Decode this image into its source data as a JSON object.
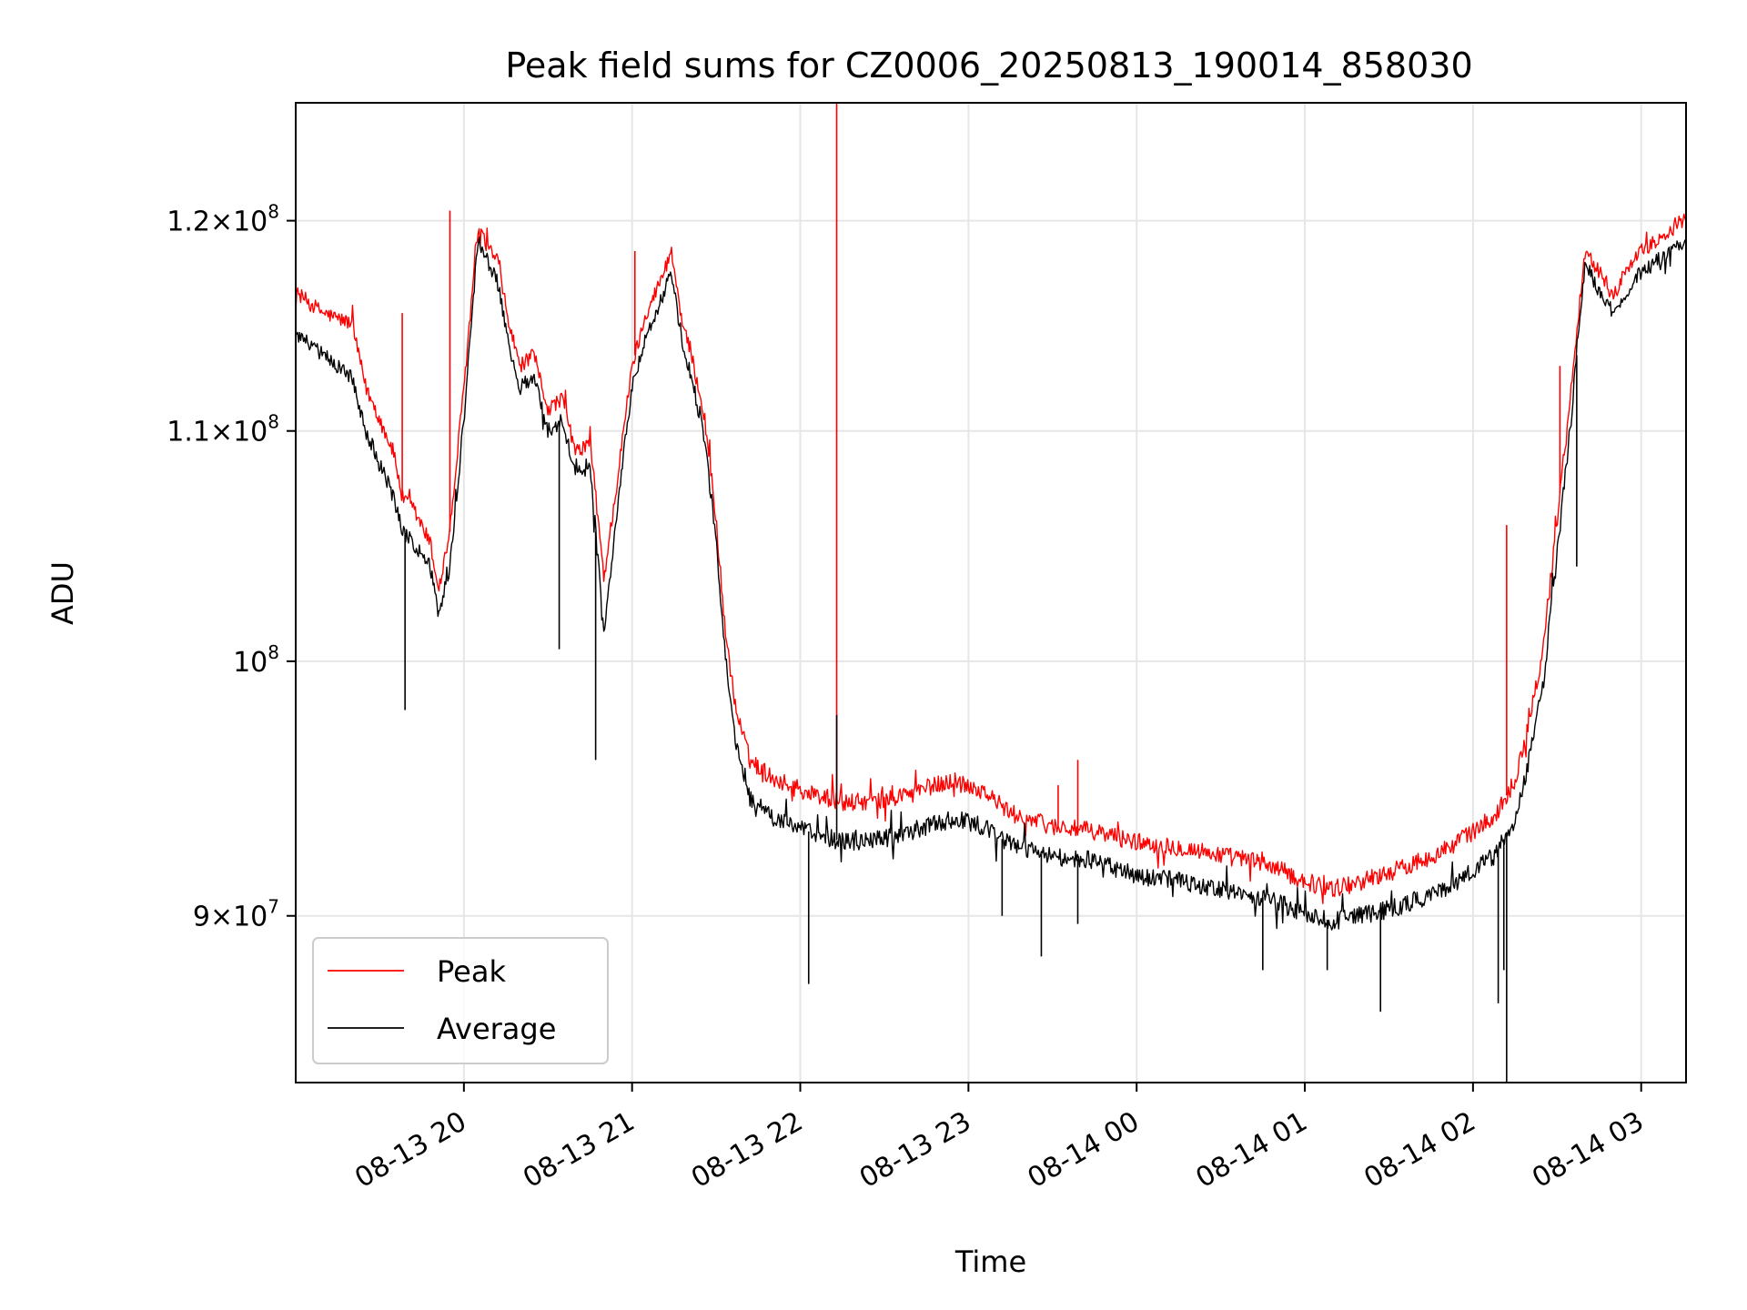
{
  "chart_data": {
    "type": "line",
    "title": "Peak field sums for CZ0006_20250813_190014_858030",
    "xlabel": "Time",
    "ylabel": "ADU",
    "y_scale": "log",
    "xlim": [
      "2025-08-13 19:00",
      "2025-08-14 03:16"
    ],
    "ylim": [
      84000000,
      126000000
    ],
    "grid": true,
    "legend_position": "lower-left",
    "x_ticks": [
      {
        "value": "2025-08-13 20:00",
        "label": "08-13 20"
      },
      {
        "value": "2025-08-13 21:00",
        "label": "08-13 21"
      },
      {
        "value": "2025-08-13 22:00",
        "label": "08-13 22"
      },
      {
        "value": "2025-08-13 23:00",
        "label": "08-13 23"
      },
      {
        "value": "2025-08-14 00:00",
        "label": "08-14 00"
      },
      {
        "value": "2025-08-14 01:00",
        "label": "08-14 01"
      },
      {
        "value": "2025-08-14 02:00",
        "label": "08-14 02"
      },
      {
        "value": "2025-08-14 03:00",
        "label": "08-14 03"
      }
    ],
    "y_ticks": [
      {
        "value": 90000000,
        "mantissa": "9",
        "times": "×",
        "base": "10",
        "exp": "7"
      },
      {
        "value": 100000000,
        "mantissa": "",
        "times": "",
        "base": "10",
        "exp": "8"
      },
      {
        "value": 110000000,
        "mantissa": "1.1",
        "times": "×",
        "base": "10",
        "exp": "8"
      },
      {
        "value": 120000000,
        "mantissa": "1.2",
        "times": "×",
        "base": "10",
        "exp": "8"
      }
    ],
    "series": [
      {
        "name": "Peak",
        "color": "#ff0000",
        "noise": 350000,
        "points": [
          [
            "2025-08-13 19:00",
            116500000
          ],
          [
            "2025-08-13 19:10",
            115500000
          ],
          [
            "2025-08-13 19:20",
            115000000
          ],
          [
            "2025-08-13 19:25",
            112000000
          ],
          [
            "2025-08-13 19:35",
            109000000
          ],
          [
            "2025-08-13 19:38",
            107000000
          ],
          [
            "2025-08-13 19:42",
            106500000
          ],
          [
            "2025-08-13 19:48",
            105000000
          ],
          [
            "2025-08-13 19:51",
            103000000
          ],
          [
            "2025-08-13 19:55",
            105500000
          ],
          [
            "2025-08-13 20:00",
            112000000
          ],
          [
            "2025-08-13 20:05",
            119500000
          ],
          [
            "2025-08-13 20:12",
            118000000
          ],
          [
            "2025-08-13 20:16",
            115000000
          ],
          [
            "2025-08-13 20:20",
            113000000
          ],
          [
            "2025-08-13 20:25",
            113500000
          ],
          [
            "2025-08-13 20:30",
            111000000
          ],
          [
            "2025-08-13 20:35",
            111500000
          ],
          [
            "2025-08-13 20:40",
            109000000
          ],
          [
            "2025-08-13 20:45",
            109500000
          ],
          [
            "2025-08-13 20:50",
            103500000
          ],
          [
            "2025-08-13 20:55",
            108000000
          ],
          [
            "2025-08-13 21:00",
            113000000
          ],
          [
            "2025-08-13 21:05",
            115500000
          ],
          [
            "2025-08-13 21:10",
            117000000
          ],
          [
            "2025-08-13 21:14",
            118500000
          ],
          [
            "2025-08-13 21:18",
            115000000
          ],
          [
            "2025-08-13 21:22",
            113000000
          ],
          [
            "2025-08-13 21:26",
            110500000
          ],
          [
            "2025-08-13 21:30",
            106000000
          ],
          [
            "2025-08-13 21:33",
            101500000
          ],
          [
            "2025-08-13 21:37",
            98000000
          ],
          [
            "2025-08-13 21:42",
            96000000
          ],
          [
            "2025-08-13 21:50",
            95300000
          ],
          [
            "2025-08-13 22:00",
            94800000
          ],
          [
            "2025-08-13 22:15",
            94300000
          ],
          [
            "2025-08-13 22:30",
            94400000
          ],
          [
            "2025-08-13 22:45",
            94900000
          ],
          [
            "2025-08-13 22:55",
            95200000
          ],
          [
            "2025-08-13 23:05",
            94800000
          ],
          [
            "2025-08-13 23:15",
            93900000
          ],
          [
            "2025-08-13 23:30",
            93400000
          ],
          [
            "2025-08-13 23:45",
            93200000
          ],
          [
            "2025-08-14 00:00",
            92800000
          ],
          [
            "2025-08-14 00:15",
            92600000
          ],
          [
            "2025-08-14 00:30",
            92300000
          ],
          [
            "2025-08-14 00:45",
            92000000
          ],
          [
            "2025-08-14 01:00",
            91300000
          ],
          [
            "2025-08-14 01:10",
            91000000
          ],
          [
            "2025-08-14 01:20",
            91300000
          ],
          [
            "2025-08-14 01:35",
            91800000
          ],
          [
            "2025-08-14 01:50",
            92500000
          ],
          [
            "2025-08-14 02:00",
            93200000
          ],
          [
            "2025-08-14 02:08",
            93800000
          ],
          [
            "2025-08-14 02:15",
            95200000
          ],
          [
            "2025-08-14 02:20",
            97500000
          ],
          [
            "2025-08-14 02:25",
            100500000
          ],
          [
            "2025-08-14 02:30",
            106000000
          ],
          [
            "2025-08-14 02:35",
            112000000
          ],
          [
            "2025-08-14 02:40",
            118500000
          ],
          [
            "2025-08-14 02:45",
            117500000
          ],
          [
            "2025-08-14 02:50",
            116500000
          ],
          [
            "2025-08-14 03:00",
            118500000
          ],
          [
            "2025-08-14 03:16",
            120000000
          ]
        ],
        "spikes": [
          [
            "2025-08-13 19:38",
            115500000
          ],
          [
            "2025-08-13 19:55",
            120500000
          ],
          [
            "2025-08-13 21:01",
            118500000
          ],
          [
            "2025-08-13 22:13",
            126000000
          ],
          [
            "2025-08-13 23:32",
            95000000
          ],
          [
            "2025-08-13 23:39",
            96000000
          ],
          [
            "2025-08-14 02:12",
            105800000
          ],
          [
            "2025-08-14 02:31",
            113000000
          ]
        ]
      },
      {
        "name": "Average",
        "color": "#000000",
        "noise": 350000,
        "points": [
          [
            "2025-08-13 19:00",
            114500000
          ],
          [
            "2025-08-13 19:10",
            113500000
          ],
          [
            "2025-08-13 19:20",
            112500000
          ],
          [
            "2025-08-13 19:25",
            110000000
          ],
          [
            "2025-08-13 19:35",
            107000000
          ],
          [
            "2025-08-13 19:38",
            105500000
          ],
          [
            "2025-08-13 19:42",
            105000000
          ],
          [
            "2025-08-13 19:48",
            104000000
          ],
          [
            "2025-08-13 19:51",
            102000000
          ],
          [
            "2025-08-13 19:55",
            104000000
          ],
          [
            "2025-08-13 20:00",
            110500000
          ],
          [
            "2025-08-13 20:05",
            119000000
          ],
          [
            "2025-08-13 20:12",
            117000000
          ],
          [
            "2025-08-13 20:16",
            114000000
          ],
          [
            "2025-08-13 20:20",
            112000000
          ],
          [
            "2025-08-13 20:25",
            112500000
          ],
          [
            "2025-08-13 20:30",
            110000000
          ],
          [
            "2025-08-13 20:35",
            110500000
          ],
          [
            "2025-08-13 20:40",
            108000000
          ],
          [
            "2025-08-13 20:45",
            108500000
          ],
          [
            "2025-08-13 20:50",
            101000000
          ],
          [
            "2025-08-13 20:55",
            107000000
          ],
          [
            "2025-08-13 21:00",
            112000000
          ],
          [
            "2025-08-13 21:05",
            114500000
          ],
          [
            "2025-08-13 21:10",
            116000000
          ],
          [
            "2025-08-13 21:14",
            117500000
          ],
          [
            "2025-08-13 21:18",
            114000000
          ],
          [
            "2025-08-13 21:22",
            112000000
          ],
          [
            "2025-08-13 21:26",
            109500000
          ],
          [
            "2025-08-13 21:30",
            105000000
          ],
          [
            "2025-08-13 21:33",
            100500000
          ],
          [
            "2025-08-13 21:37",
            96800000
          ],
          [
            "2025-08-13 21:42",
            94500000
          ],
          [
            "2025-08-13 21:50",
            93700000
          ],
          [
            "2025-08-13 22:00",
            93300000
          ],
          [
            "2025-08-13 22:15",
            92800000
          ],
          [
            "2025-08-13 22:30",
            92900000
          ],
          [
            "2025-08-13 22:45",
            93400000
          ],
          [
            "2025-08-13 22:55",
            93700000
          ],
          [
            "2025-08-13 23:05",
            93400000
          ],
          [
            "2025-08-13 23:15",
            92700000
          ],
          [
            "2025-08-13 23:30",
            92200000
          ],
          [
            "2025-08-13 23:45",
            92100000
          ],
          [
            "2025-08-14 00:00",
            91500000
          ],
          [
            "2025-08-14 00:15",
            91300000
          ],
          [
            "2025-08-14 00:30",
            91000000
          ],
          [
            "2025-08-14 00:45",
            90700000
          ],
          [
            "2025-08-14 01:00",
            90100000
          ],
          [
            "2025-08-14 01:10",
            89800000
          ],
          [
            "2025-08-14 01:20",
            90000000
          ],
          [
            "2025-08-14 01:35",
            90400000
          ],
          [
            "2025-08-14 01:50",
            91000000
          ],
          [
            "2025-08-14 02:00",
            91700000
          ],
          [
            "2025-08-14 02:08",
            92300000
          ],
          [
            "2025-08-14 02:15",
            93700000
          ],
          [
            "2025-08-14 02:20",
            96000000
          ],
          [
            "2025-08-14 02:25",
            99000000
          ],
          [
            "2025-08-14 02:30",
            104500000
          ],
          [
            "2025-08-14 02:35",
            110500000
          ],
          [
            "2025-08-14 02:40",
            118000000
          ],
          [
            "2025-08-14 02:45",
            116500000
          ],
          [
            "2025-08-14 02:50",
            115500000
          ],
          [
            "2025-08-14 03:00",
            117500000
          ],
          [
            "2025-08-14 03:16",
            119000000
          ]
        ],
        "spikes": [
          [
            "2025-08-13 19:39",
            98000000
          ],
          [
            "2025-08-13 20:34",
            100500000
          ],
          [
            "2025-08-13 20:47",
            96000000
          ],
          [
            "2025-08-13 22:03",
            87500000
          ],
          [
            "2025-08-13 22:13",
            97800000
          ],
          [
            "2025-08-13 23:12",
            90000000
          ],
          [
            "2025-08-13 23:26",
            88500000
          ],
          [
            "2025-08-13 23:39",
            89700000
          ],
          [
            "2025-08-14 00:45",
            88000000
          ],
          [
            "2025-08-14 01:08",
            88000000
          ],
          [
            "2025-08-14 01:27",
            86500000
          ],
          [
            "2025-08-14 02:09",
            86800000
          ],
          [
            "2025-08-14 02:12",
            84000000
          ],
          [
            "2025-08-14 02:11",
            88000000
          ],
          [
            "2025-08-14 02:37",
            104000000
          ]
        ]
      }
    ]
  }
}
